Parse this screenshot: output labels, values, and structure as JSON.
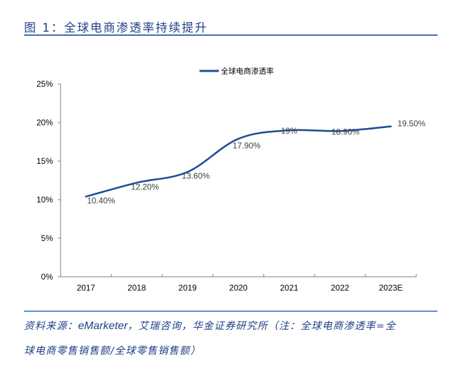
{
  "figure": {
    "label": "图 1：",
    "title": "全球电商渗透率持续提升"
  },
  "source": {
    "line1_prefix": "资料来源：",
    "line1_en": "eMarketer",
    "line1_rest": "，艾瑞咨询，华金证券研究所（注：全球电商渗透率=全",
    "line2": "球电商零售销售额/全球零售销售额）"
  },
  "colors": {
    "title": "#1f3f86",
    "rule": "#3a6db3",
    "series": "#1f4e94",
    "axis": "#7f7f7f",
    "label": "#404040"
  },
  "chart_data": {
    "type": "line",
    "title": "",
    "xlabel": "",
    "ylabel": "",
    "categories": [
      "2017",
      "2018",
      "2019",
      "2020",
      "2021",
      "2022",
      "2023E"
    ],
    "series": [
      {
        "name": "全球电商渗透率",
        "values": [
          10.4,
          12.2,
          13.6,
          17.9,
          19.0,
          18.9,
          19.5
        ],
        "labels": [
          "10.40%",
          "12.20%",
          "13.60%",
          "17.90%",
          "19%",
          "18.90%",
          "19.50%"
        ],
        "smooth": true
      }
    ],
    "ylim": [
      0,
      25
    ],
    "yticks": [
      0,
      5,
      10,
      15,
      20,
      25
    ],
    "ytick_labels": [
      "0%",
      "5%",
      "10%",
      "15%",
      "20%",
      "25%"
    ],
    "grid": false,
    "legend": "top-center"
  }
}
